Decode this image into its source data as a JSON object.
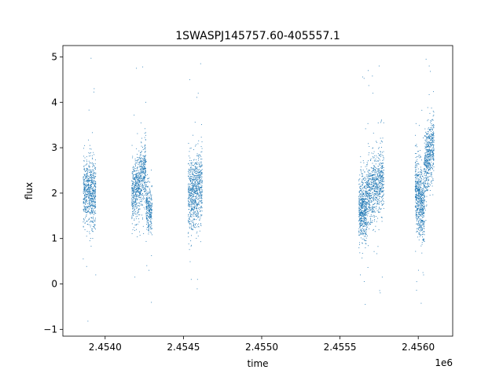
{
  "chart_data": {
    "type": "scatter",
    "title": "1SWASPJ145757.60-405557.1",
    "xlabel": "time",
    "ylabel": "flux",
    "x_offset_label": "1e6",
    "x_scale": 1000000,
    "xlim": [
      2.45373,
      2.45622
    ],
    "ylim": [
      -1.15,
      5.25
    ],
    "x_ticks": [
      {
        "value": 2.454,
        "label": "2.4540"
      },
      {
        "value": 2.4545,
        "label": "2.4545"
      },
      {
        "value": 2.455,
        "label": "2.4550"
      },
      {
        "value": 2.4555,
        "label": "2.4555"
      },
      {
        "value": 2.456,
        "label": "2.4560"
      }
    ],
    "y_ticks": [
      {
        "value": -1,
        "label": "−1"
      },
      {
        "value": 0,
        "label": "0"
      },
      {
        "value": 1,
        "label": "1"
      },
      {
        "value": 2,
        "label": "2"
      },
      {
        "value": 3,
        "label": "3"
      },
      {
        "value": 4,
        "label": "4"
      },
      {
        "value": 5,
        "label": "5"
      }
    ],
    "grid": false,
    "point_color": "#1f77b4",
    "series": [
      {
        "clusters": [
          {
            "x_range": [
              2.45386,
              2.45394
            ],
            "y_center_start": 2.0,
            "y_center_end": 2.0,
            "spread": 0.35,
            "count": 700
          },
          {
            "x_range": [
              2.45417,
              2.45426
            ],
            "y_center_start": 1.9,
            "y_center_end": 2.5,
            "spread": 0.35,
            "count": 750
          },
          {
            "x_range": [
              2.45426,
              2.4543
            ],
            "y_center_start": 1.8,
            "y_center_end": 1.5,
            "spread": 0.25,
            "count": 300
          },
          {
            "x_range": [
              2.45453,
              2.45462
            ],
            "y_center_start": 1.9,
            "y_center_end": 2.2,
            "spread": 0.4,
            "count": 800
          },
          {
            "x_range": [
              2.45562,
              2.45567
            ],
            "y_center_start": 1.6,
            "y_center_end": 1.7,
            "spread": 0.35,
            "count": 550
          },
          {
            "x_range": [
              2.45567,
              2.45578
            ],
            "y_center_start": 2.0,
            "y_center_end": 2.3,
            "spread": 0.35,
            "count": 800
          },
          {
            "x_range": [
              2.45598,
              2.45604
            ],
            "y_center_start": 2.1,
            "y_center_end": 1.6,
            "spread": 0.4,
            "count": 700
          },
          {
            "x_range": [
              2.45604,
              2.4561
            ],
            "y_center_start": 2.6,
            "y_center_end": 3.1,
            "spread": 0.35,
            "count": 550
          }
        ],
        "outliers": [
          {
            "x": 2.45389,
            "y": -0.82
          },
          {
            "x": 2.45391,
            "y": 4.97
          },
          {
            "x": 2.45393,
            "y": 4.3
          },
          {
            "x": 2.45394,
            "y": 0.2
          },
          {
            "x": 2.45386,
            "y": 0.55
          },
          {
            "x": 2.4542,
            "y": 4.75
          },
          {
            "x": 2.45424,
            "y": 4.78
          },
          {
            "x": 2.45426,
            "y": 4.0
          },
          {
            "x": 2.45419,
            "y": 0.15
          },
          {
            "x": 2.45428,
            "y": 0.3
          },
          {
            "x": 2.45454,
            "y": 4.5
          },
          {
            "x": 2.45461,
            "y": 4.85
          },
          {
            "x": 2.45455,
            "y": 0.1
          },
          {
            "x": 2.45459,
            "y": 0.1
          },
          {
            "x": 2.45568,
            "y": 4.7
          },
          {
            "x": 2.45575,
            "y": 4.8
          },
          {
            "x": 2.45571,
            "y": 4.2
          },
          {
            "x": 2.45563,
            "y": 0.2
          },
          {
            "x": 2.45577,
            "y": 0.15
          },
          {
            "x": 2.45605,
            "y": 4.95
          },
          {
            "x": 2.45607,
            "y": 4.8
          },
          {
            "x": 2.45599,
            "y": 0.05
          },
          {
            "x": 2.45603,
            "y": 0.25
          }
        ]
      }
    ]
  }
}
